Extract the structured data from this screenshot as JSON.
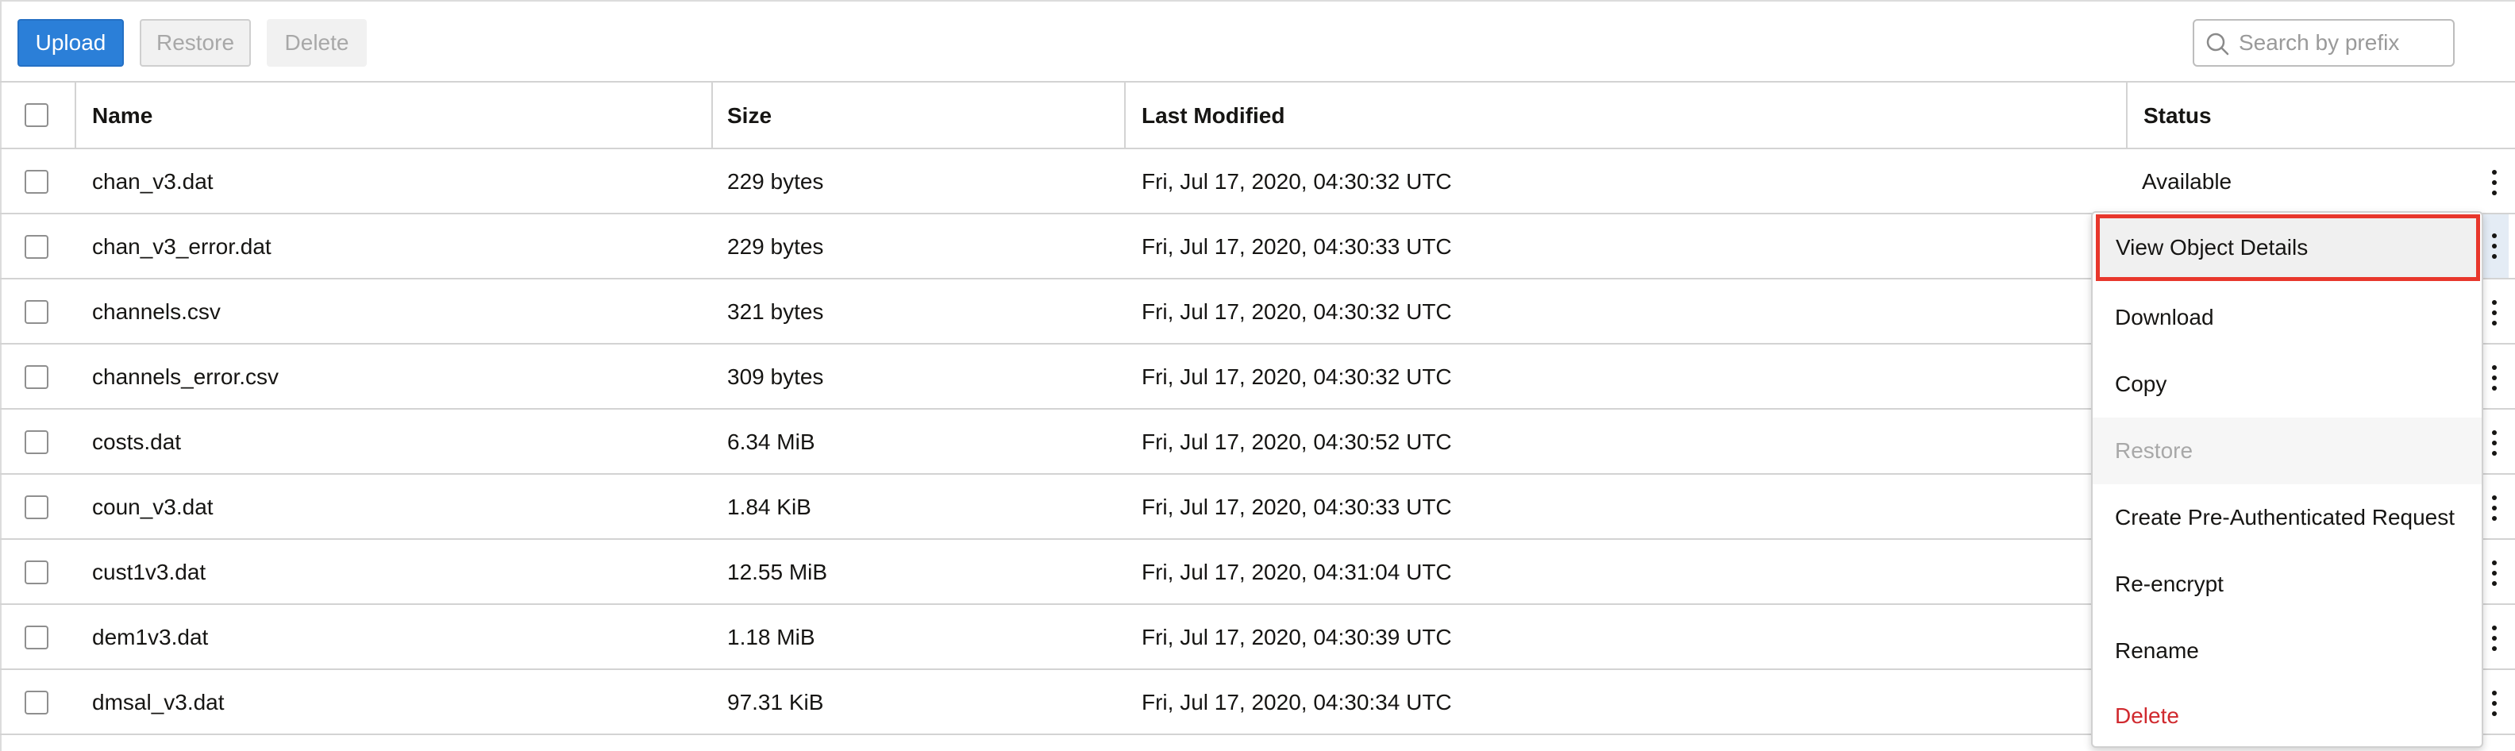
{
  "toolbar": {
    "upload_label": "Upload",
    "restore_label": "Restore",
    "delete_label": "Delete"
  },
  "search": {
    "placeholder": "Search by prefix",
    "icon": "search-icon"
  },
  "table": {
    "columns": [
      "Name",
      "Size",
      "Last Modified",
      "Status"
    ],
    "rows": [
      {
        "name": "chan_v3.dat",
        "size": "229 bytes",
        "modified": "Fri, Jul 17, 2020, 04:30:32 UTC",
        "status": "Available"
      },
      {
        "name": "chan_v3_error.dat",
        "size": "229 bytes",
        "modified": "Fri, Jul 17, 2020, 04:30:33 UTC",
        "status": ""
      },
      {
        "name": "channels.csv",
        "size": "321 bytes",
        "modified": "Fri, Jul 17, 2020, 04:30:32 UTC",
        "status": ""
      },
      {
        "name": "channels_error.csv",
        "size": "309 bytes",
        "modified": "Fri, Jul 17, 2020, 04:30:32 UTC",
        "status": ""
      },
      {
        "name": "costs.dat",
        "size": "6.34 MiB",
        "modified": "Fri, Jul 17, 2020, 04:30:52 UTC",
        "status": ""
      },
      {
        "name": "coun_v3.dat",
        "size": "1.84 KiB",
        "modified": "Fri, Jul 17, 2020, 04:30:33 UTC",
        "status": ""
      },
      {
        "name": "cust1v3.dat",
        "size": "12.55 MiB",
        "modified": "Fri, Jul 17, 2020, 04:31:04 UTC",
        "status": ""
      },
      {
        "name": "dem1v3.dat",
        "size": "1.18 MiB",
        "modified": "Fri, Jul 17, 2020, 04:30:39 UTC",
        "status": ""
      },
      {
        "name": "dmsal_v3.dat",
        "size": "97.31 KiB",
        "modified": "Fri, Jul 17, 2020, 04:30:34 UTC",
        "status": ""
      }
    ]
  },
  "context_menu": {
    "items": [
      {
        "label": "View Object Details",
        "state": "highlighted"
      },
      {
        "label": "Download",
        "state": "normal"
      },
      {
        "label": "Copy",
        "state": "normal"
      },
      {
        "label": "Restore",
        "state": "disabled"
      },
      {
        "label": "Create Pre-Authenticated Request",
        "state": "normal"
      },
      {
        "label": "Re-encrypt",
        "state": "normal"
      },
      {
        "label": "Rename",
        "state": "normal"
      },
      {
        "label": "Delete",
        "state": "danger"
      }
    ]
  },
  "colors": {
    "primary": "#2b7fd8",
    "danger": "#d0292e",
    "highlight_border": "#e8372c"
  }
}
